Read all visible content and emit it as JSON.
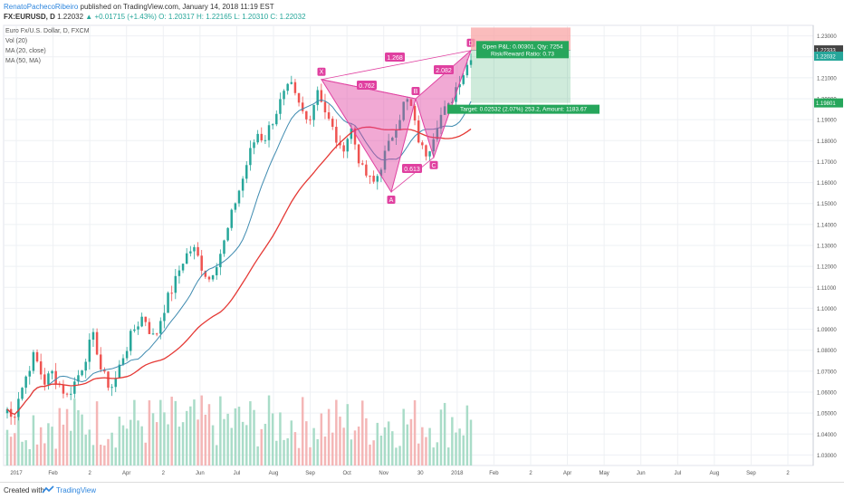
{
  "header": {
    "author": "RenatoPachecoRibeiro",
    "published_text": "published on TradingView.com, January 14, 2018 11:19 EST",
    "symbol": "FX:EURUSD, D",
    "last": "1.22032",
    "change": "+0.01715 (+1.43%)",
    "ohlc": "O: 1.20317  H: 1.22165  L: 1.20310  C: 1.22032"
  },
  "indicators": [
    "Euro Fx/U.S. Dollar, D, FXCM",
    "Vol (20)",
    "MA (20, close)",
    "MA (50, MA)"
  ],
  "footer": {
    "created": "Created with",
    "brand": "TradingView"
  },
  "colors": {
    "up": "#26a69a",
    "down": "#ef5350",
    "pattern": "#e040a0",
    "ma_fast": "#3f8bb0",
    "ma_slow": "#e53935",
    "target": "#26a65b",
    "stop": "#f8a5a5"
  },
  "chart_data": {
    "type": "candlestick",
    "price_ylim": [
      1.025,
      1.235
    ],
    "y_ticks": [
      "1.23000",
      "1.22000",
      "1.21000",
      "1.20000",
      "1.19000",
      "1.18000",
      "1.17000",
      "1.16000",
      "1.15000",
      "1.14000",
      "1.13000",
      "1.12000",
      "1.11000",
      "1.10000",
      "1.09000",
      "1.08000",
      "1.07000",
      "1.06000",
      "1.05000",
      "1.04000",
      "1.03000"
    ],
    "x_ticks": [
      "2017",
      "Feb",
      "2",
      "Apr",
      "2",
      "Jun",
      "Jul",
      "Aug",
      "Sep",
      "Oct",
      "Nov",
      "30",
      "2018",
      "Feb",
      "2",
      "Apr",
      "May",
      "Jun",
      "Jul",
      "Aug",
      "Sep",
      "2"
    ],
    "price_labels": {
      "last": "1.22032",
      "ask": "1.22333",
      "target": "1.19801"
    },
    "pattern": {
      "points": [
        {
          "label": "X",
          "price": 1.2092
        },
        {
          "label": "A",
          "price": 1.1555
        },
        {
          "label": "B",
          "price": 1.2
        },
        {
          "label": "C",
          "price": 1.172
        },
        {
          "label": "D",
          "price": 1.223
        }
      ],
      "ratios": [
        "1.268",
        "0.762",
        "2.082",
        "0.613"
      ]
    },
    "position_box": {
      "open_pnl": "Open P&L: 0.00301, Qty: 7254",
      "risk_reward": "Risk/Reward Ratio: 0.73",
      "target_text": "Target: 0.02532 (2.07%) 253.2, Amount: 1183.67"
    },
    "price_path": [
      1.052,
      1.046,
      1.058,
      1.064,
      1.072,
      1.078,
      1.07,
      1.064,
      1.07,
      1.066,
      1.062,
      1.058,
      1.063,
      1.068,
      1.074,
      1.082,
      1.087,
      1.072,
      1.066,
      1.062,
      1.067,
      1.076,
      1.082,
      1.089,
      1.093,
      1.097,
      1.09,
      1.085,
      1.094,
      1.102,
      1.108,
      1.114,
      1.122,
      1.126,
      1.129,
      1.124,
      1.118,
      1.114,
      1.12,
      1.126,
      1.133,
      1.143,
      1.153,
      1.16,
      1.17,
      1.178,
      1.184,
      1.18,
      1.186,
      1.192,
      1.198,
      1.203,
      1.206,
      1.199,
      1.194,
      1.189,
      1.196,
      1.206,
      1.196,
      1.189,
      1.183,
      1.175,
      1.179,
      1.186,
      1.176,
      1.166,
      1.163,
      1.159,
      1.164,
      1.172,
      1.178,
      1.186,
      1.192,
      1.2,
      1.196,
      1.184,
      1.176,
      1.174,
      1.182,
      1.19,
      1.194,
      1.196,
      1.204,
      1.21,
      1.214,
      1.221
    ],
    "volume_max": 1.0
  }
}
